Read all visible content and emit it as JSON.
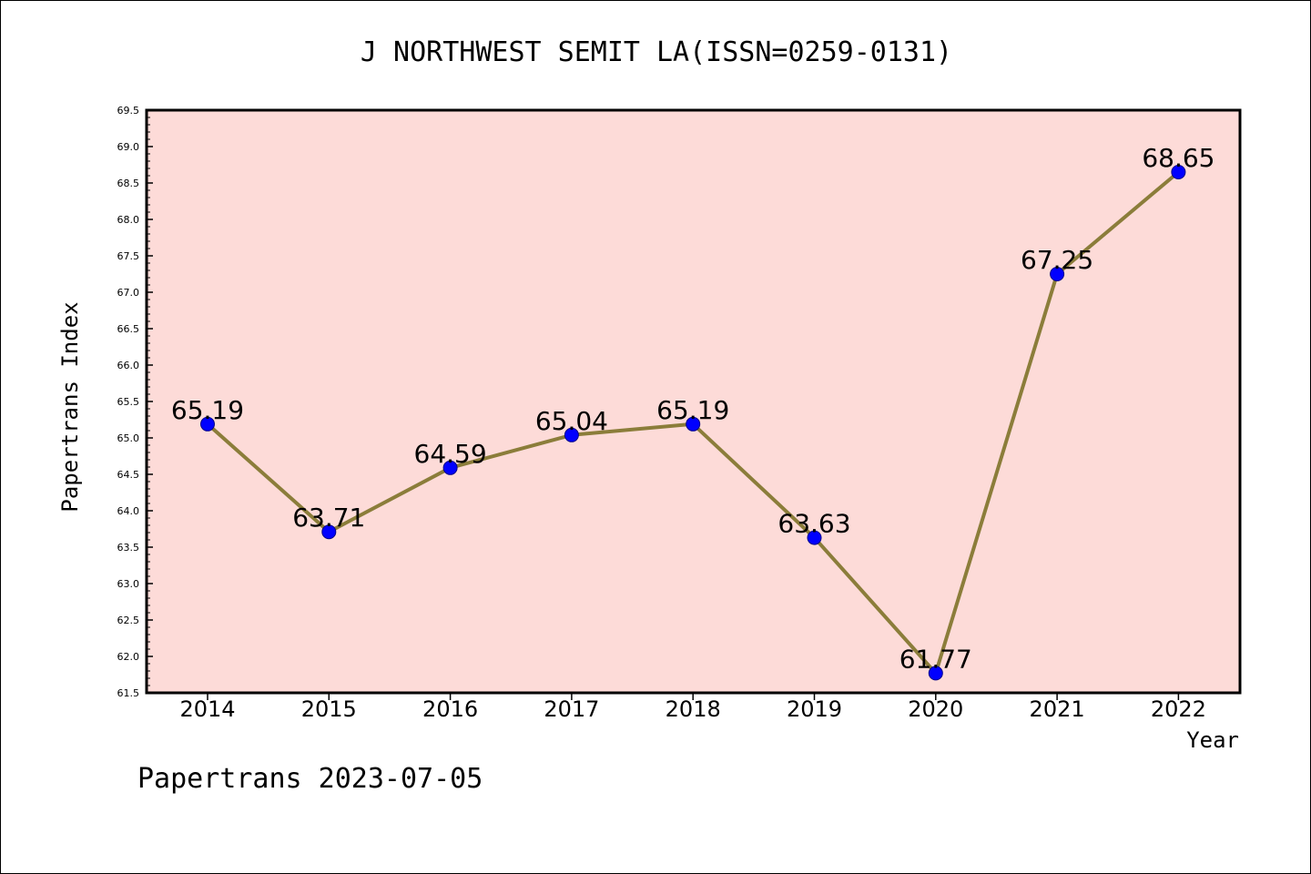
{
  "chart_data": {
    "type": "line",
    "title": "J NORTHWEST SEMIT LA(ISSN=0259-0131)",
    "xlabel": "Year",
    "ylabel": "Papertrans Index",
    "x": [
      "2014",
      "2015",
      "2016",
      "2017",
      "2018",
      "2019",
      "2020",
      "2021",
      "2022"
    ],
    "series": [
      {
        "values": [
          65.19,
          63.71,
          64.59,
          65.04,
          65.19,
          63.63,
          61.77,
          67.25,
          68.65
        ],
        "labels": [
          "65.19",
          "63.71",
          "64.59",
          "65.04",
          "65.19",
          "63.63",
          "61.77",
          "67.25",
          "68.65"
        ],
        "line_color": "#8b7d3a",
        "marker_color": "#0000ff"
      }
    ],
    "ylim": [
      61.5,
      69.5
    ],
    "yticks": [
      "61.5",
      "62.0",
      "62.5",
      "63.0",
      "63.5",
      "64.0",
      "64.5",
      "65.0",
      "65.5",
      "66.0",
      "66.5",
      "67.0",
      "67.5",
      "68.0",
      "68.5",
      "69.0",
      "69.5"
    ],
    "plot_background": "#fddbd8",
    "grid": false,
    "legend": "none",
    "footer": "Papertrans 2023-07-05"
  }
}
